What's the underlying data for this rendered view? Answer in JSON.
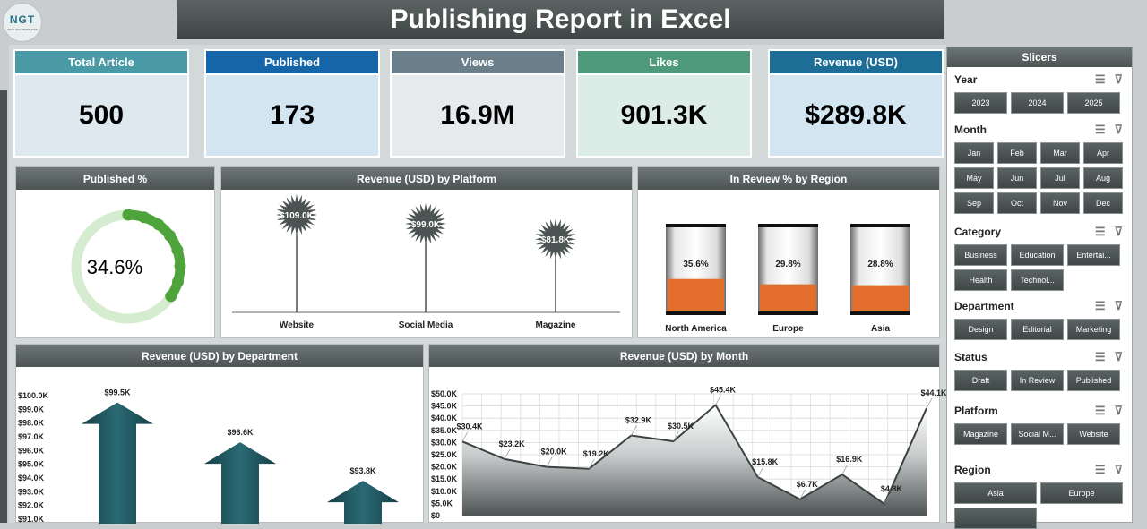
{
  "title": "Publishing Report in Excel",
  "logo": {
    "text": "NGT",
    "subtext": "NEXT GEN TEMPLATES"
  },
  "kpis": [
    {
      "label": "Total Article",
      "value": "500",
      "head": "#4a9aa6",
      "bg": "#dde9ee"
    },
    {
      "label": "Published",
      "value": "173",
      "head": "#1565a8",
      "bg": "#d3e5f1"
    },
    {
      "label": "Views",
      "value": "16.9M",
      "head": "#6a7f8a",
      "bg": "#e6eaec"
    },
    {
      "label": "Likes",
      "value": "901.3K",
      "head": "#4f9a7d",
      "bg": "#dcece6"
    },
    {
      "label": "Revenue (USD)",
      "value": "$289.8K",
      "head": "#1d6e97",
      "bg": "#d3e5f1"
    }
  ],
  "panels": {
    "published_pct": {
      "title": "Published %",
      "value": "34.6%"
    },
    "by_platform": {
      "title": "Revenue (USD) by Platform"
    },
    "review_region": {
      "title": "In Review % by Region"
    },
    "by_department": {
      "title": "Revenue (USD) by Department"
    },
    "by_month": {
      "title": "Revenue (USD) by Month"
    }
  },
  "chart_data": [
    {
      "type": "pie",
      "title": "Published %",
      "values": [
        34.6,
        65.4
      ],
      "label": "34.6%"
    },
    {
      "type": "bar",
      "title": "Revenue (USD) by Platform",
      "categories": [
        "Website",
        "Social Media",
        "Magazine"
      ],
      "values": [
        109.0,
        99.0,
        81.8
      ],
      "labels": [
        "$109.0K",
        "$99.0K",
        "$81.8K"
      ]
    },
    {
      "type": "bar",
      "title": "In Review % by Region",
      "categories": [
        "North America",
        "Europe",
        "Asia"
      ],
      "values": [
        35.6,
        29.8,
        28.8
      ],
      "labels": [
        "35.6%",
        "29.8%",
        "28.8%"
      ],
      "ylim": [
        0,
        100
      ]
    },
    {
      "type": "bar",
      "title": "Revenue (USD) by Department",
      "values": [
        99.5,
        96.6,
        93.8
      ],
      "labels": [
        "$99.5K",
        "$96.6K",
        "$93.8K"
      ],
      "ylim": [
        91.0,
        100.0
      ],
      "yticks": [
        "$100.0K",
        "$99.0K",
        "$98.0K",
        "$97.0K",
        "$96.0K",
        "$95.0K",
        "$94.0K",
        "$93.0K",
        "$92.0K",
        "$91.0K"
      ]
    },
    {
      "type": "area",
      "title": "Revenue (USD) by Month",
      "values": [
        30.4,
        23.2,
        20.0,
        19.2,
        32.9,
        30.5,
        45.4,
        15.8,
        6.7,
        16.9,
        4.8,
        44.1
      ],
      "labels": [
        "$30.4K",
        "$23.2K",
        "$20.0K",
        "$19.2K",
        "$32.9K",
        "$30.5K",
        "$45.4K",
        "$15.8K",
        "$6.7K",
        "$16.9K",
        "$4.8K",
        "$44.1K"
      ],
      "ylim": [
        0,
        50
      ],
      "yticks": [
        "$50.0K",
        "$45.0K",
        "$40.0K",
        "$35.0K",
        "$30.0K",
        "$25.0K",
        "$20.0K",
        "$15.0K",
        "$10.0K",
        "$5.0K",
        "$0"
      ],
      "grid": true
    }
  ],
  "slicers": {
    "title": "Slicers",
    "groups": [
      {
        "name": "Year",
        "items": [
          "2023",
          "2024",
          "2025"
        ]
      },
      {
        "name": "Month",
        "items": [
          "Jan",
          "Feb",
          "Mar",
          "Apr",
          "May",
          "Jun",
          "Jul",
          "Aug",
          "Sep",
          "Oct",
          "Nov",
          "Dec"
        ]
      },
      {
        "name": "Category",
        "items": [
          "Business",
          "Education",
          "Entertai...",
          "Health",
          "Technol..."
        ]
      },
      {
        "name": "Department",
        "items": [
          "Design",
          "Editorial",
          "Marketing"
        ]
      },
      {
        "name": "Status",
        "items": [
          "Draft",
          "In Review",
          "Published"
        ]
      },
      {
        "name": "Platform",
        "items": [
          "Magazine",
          "Social M...",
          "Website"
        ]
      },
      {
        "name": "Region",
        "items": [
          "Asia",
          "Europe",
          ""
        ]
      }
    ]
  },
  "icons": {
    "multiselect": "multiselect-icon",
    "clear_filter": "clear-filter-icon"
  }
}
